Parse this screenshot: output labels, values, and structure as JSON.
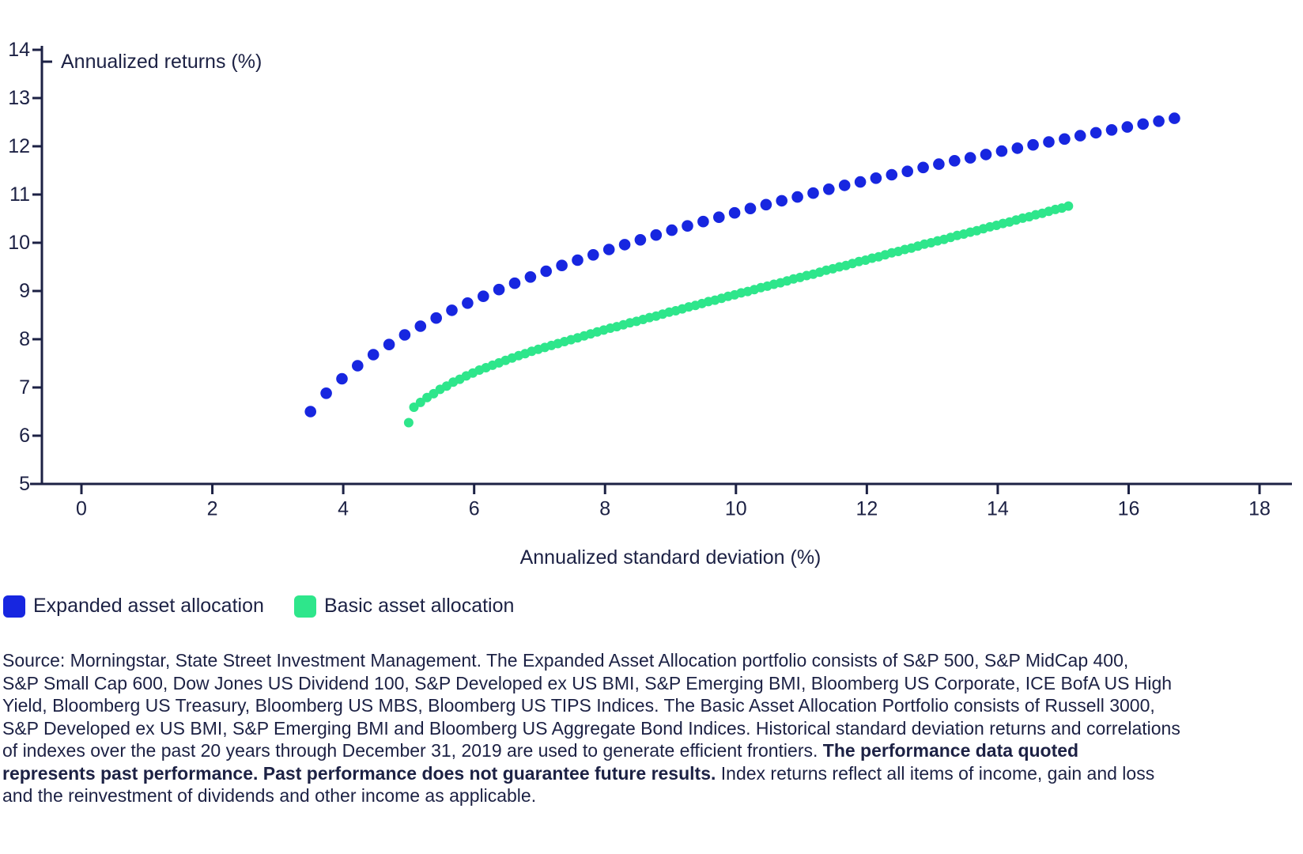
{
  "colors": {
    "expanded_blue": "#1726e0",
    "basic_green": "#2ee68b",
    "axis_navy": "#1c2144",
    "background": "#ffffff"
  },
  "chart": {
    "y_axis_title": "Annualized returns (%)",
    "x_axis_title": "Annualized standard deviation (%)",
    "y_ticks": [
      5,
      6,
      7,
      8,
      9,
      10,
      11,
      12,
      13,
      14
    ],
    "x_ticks": [
      0,
      2,
      4,
      6,
      8,
      10,
      12,
      14,
      16,
      18
    ]
  },
  "legend": [
    {
      "label": "Expanded asset allocation",
      "color": "#1726e0"
    },
    {
      "label": "Basic asset allocation",
      "color": "#2ee68b"
    }
  ],
  "source": {
    "lines": [
      {
        "pre": "Source: Morningstar, State Street Investment Management. The Expanded Asset Allocation portfolio consists of S&P 500, S&P MidCap 400,",
        "bold": "",
        "post": ""
      },
      {
        "pre": "S&P Small Cap 600, Dow Jones US Dividend 100, S&P Developed ex US BMI, S&P Emerging BMI, Bloomberg US Corporate, ICE BofA US High",
        "bold": "",
        "post": ""
      },
      {
        "pre": "Yield, Bloomberg US Treasury, Bloomberg US MBS, Bloomberg US TIPS Indices. The Basic Asset Allocation Portfolio consists of Russell 3000,",
        "bold": "",
        "post": ""
      },
      {
        "pre": "S&P Developed ex US BMI, S&P Emerging BMI and Bloomberg US Aggregate Bond Indices. Historical standard deviation returns and correlations",
        "bold": "",
        "post": ""
      },
      {
        "pre": "of indexes over the past 20 years through December 31, 2019 are used to generate efficient frontiers. ",
        "bold": "The performance data quoted",
        "post": ""
      },
      {
        "pre": "",
        "bold": "represents past performance. Past performance does not guarantee future results.",
        "post": " Index returns reflect all items of income, gain and loss"
      },
      {
        "pre": "and the reinvestment of dividends and other income as applicable.",
        "bold": "",
        "post": ""
      }
    ]
  },
  "chart_data": {
    "type": "scatter",
    "title": "",
    "xlabel": "Annualized standard deviation (%)",
    "ylabel": "Annualized returns (%)",
    "xlim": [
      -0.6,
      18.5
    ],
    "ylim": [
      5,
      14
    ],
    "grid": false,
    "legend_position": "bottom-left",
    "series": [
      {
        "name": "Expanded asset allocation",
        "color": "#1726e0",
        "marker_radius": 7.3,
        "x": [
          3.5,
          3.74,
          3.98,
          4.22,
          4.46,
          4.7,
          4.94,
          5.18,
          5.42,
          5.66,
          5.9,
          6.14,
          6.38,
          6.62,
          6.86,
          7.1,
          7.34,
          7.58,
          7.82,
          8.06,
          8.3,
          8.54,
          8.78,
          9.02,
          9.26,
          9.5,
          9.74,
          9.98,
          10.22,
          10.46,
          10.7,
          10.94,
          11.18,
          11.42,
          11.66,
          11.9,
          12.14,
          12.38,
          12.62,
          12.86,
          13.1,
          13.34,
          13.58,
          13.82,
          14.06,
          14.3,
          14.54,
          14.78,
          15.02,
          15.26,
          15.5,
          15.74,
          15.98,
          16.22,
          16.46,
          16.7
        ],
        "y": [
          6.5,
          6.88,
          7.18,
          7.45,
          7.68,
          7.89,
          8.09,
          8.27,
          8.44,
          8.6,
          8.75,
          8.89,
          9.03,
          9.16,
          9.29,
          9.41,
          9.53,
          9.64,
          9.75,
          9.86,
          9.96,
          10.06,
          10.16,
          10.26,
          10.35,
          10.44,
          10.53,
          10.62,
          10.71,
          10.79,
          10.87,
          10.95,
          11.03,
          11.11,
          11.19,
          11.26,
          11.34,
          11.41,
          11.48,
          11.56,
          11.63,
          11.7,
          11.76,
          11.83,
          11.9,
          11.96,
          12.03,
          12.09,
          12.15,
          12.22,
          12.28,
          12.34,
          12.4,
          12.46,
          12.52,
          12.58
        ]
      },
      {
        "name": "Basic asset allocation",
        "color": "#2ee68b",
        "marker_radius": 6,
        "x": [
          5.0,
          5.08,
          5.18,
          5.28,
          5.38,
          5.48,
          5.58,
          5.68,
          5.78,
          5.88,
          5.98,
          6.08,
          6.18,
          6.28,
          6.38,
          6.48,
          6.58,
          6.68,
          6.78,
          6.88,
          6.98,
          7.08,
          7.18,
          7.28,
          7.38,
          7.48,
          7.58,
          7.68,
          7.78,
          7.88,
          7.98,
          8.08,
          8.18,
          8.28,
          8.38,
          8.48,
          8.58,
          8.68,
          8.78,
          8.88,
          8.98,
          9.08,
          9.18,
          9.28,
          9.38,
          9.48,
          9.58,
          9.68,
          9.78,
          9.88,
          9.98,
          10.08,
          10.18,
          10.28,
          10.38,
          10.48,
          10.58,
          10.68,
          10.78,
          10.88,
          10.98,
          11.08,
          11.18,
          11.28,
          11.38,
          11.48,
          11.58,
          11.68,
          11.78,
          11.88,
          11.98,
          12.08,
          12.18,
          12.28,
          12.38,
          12.48,
          12.58,
          12.68,
          12.78,
          12.88,
          12.98,
          13.08,
          13.18,
          13.28,
          13.38,
          13.48,
          13.58,
          13.68,
          13.78,
          13.88,
          13.98,
          14.08,
          14.18,
          14.28,
          14.38,
          14.48,
          14.58,
          14.68,
          14.78,
          14.88,
          14.98,
          15.08
        ],
        "y": [
          6.27,
          6.59,
          6.69,
          6.79,
          6.87,
          6.96,
          7.03,
          7.11,
          7.17,
          7.24,
          7.3,
          7.36,
          7.41,
          7.46,
          7.51,
          7.56,
          7.61,
          7.66,
          7.7,
          7.75,
          7.79,
          7.83,
          7.87,
          7.91,
          7.95,
          7.99,
          8.03,
          8.07,
          8.11,
          8.15,
          8.19,
          8.23,
          8.26,
          8.3,
          8.34,
          8.37,
          8.41,
          8.45,
          8.48,
          8.52,
          8.56,
          8.59,
          8.63,
          8.67,
          8.7,
          8.74,
          8.78,
          8.81,
          8.85,
          8.89,
          8.92,
          8.96,
          8.99,
          9.03,
          9.07,
          9.1,
          9.14,
          9.17,
          9.21,
          9.25,
          9.28,
          9.32,
          9.35,
          9.39,
          9.43,
          9.46,
          9.5,
          9.53,
          9.57,
          9.61,
          9.64,
          9.68,
          9.71,
          9.75,
          9.79,
          9.82,
          9.86,
          9.89,
          9.93,
          9.97,
          10.0,
          10.04,
          10.07,
          10.11,
          10.15,
          10.18,
          10.22,
          10.25,
          10.29,
          10.33,
          10.36,
          10.4,
          10.43,
          10.47,
          10.51,
          10.54,
          10.58,
          10.61,
          10.65,
          10.69,
          10.72,
          10.76
        ]
      }
    ]
  }
}
